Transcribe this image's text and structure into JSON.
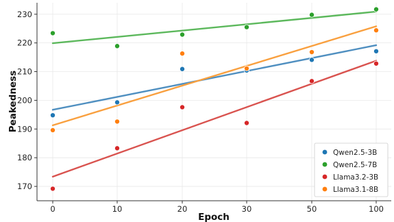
{
  "chart_data": {
    "type": "scatter",
    "title": "",
    "xlabel": "Epoch",
    "ylabel": "Peakedness",
    "x_ticks": [
      0,
      10,
      20,
      30,
      50,
      100
    ],
    "x_tick_labels": [
      "0",
      "10",
      "20",
      "30",
      "50",
      "100"
    ],
    "y_ticks": [
      170,
      180,
      190,
      200,
      210,
      220,
      230
    ],
    "y_tick_labels": [
      "170",
      "180",
      "190",
      "200",
      "210",
      "220",
      "230"
    ],
    "ylim": [
      165,
      234
    ],
    "x_axis_scale": "categorical-evenly-spaced",
    "grid": true,
    "legend_position": "bottom-right",
    "series": [
      {
        "name": "Qwen2.5-3B",
        "color": "#1f77b4",
        "line_color": "#4f8fc0",
        "values": [
          194.8,
          199.3,
          210.9,
          210.4,
          214.1,
          217.1
        ],
        "trend": [
          196.7,
          219.2
        ]
      },
      {
        "name": "Qwen2.5-7B",
        "color": "#2ca02c",
        "line_color": "#5cb85c",
        "values": [
          223.4,
          218.9,
          222.9,
          225.5,
          229.8,
          231.7
        ],
        "trend": [
          219.9,
          230.9
        ]
      },
      {
        "name": "Llama3.2-3B",
        "color": "#d62728",
        "line_color": "#d9534f",
        "values": [
          169.2,
          183.3,
          197.6,
          192.1,
          206.7,
          212.8
        ],
        "trend": [
          173.4,
          213.8
        ]
      },
      {
        "name": "Llama3.1-8B",
        "color": "#ff7f0e",
        "line_color": "#f9a03f",
        "values": [
          189.6,
          192.6,
          216.3,
          211.1,
          216.8,
          224.4
        ],
        "trend": [
          191.3,
          225.8
        ]
      }
    ]
  }
}
